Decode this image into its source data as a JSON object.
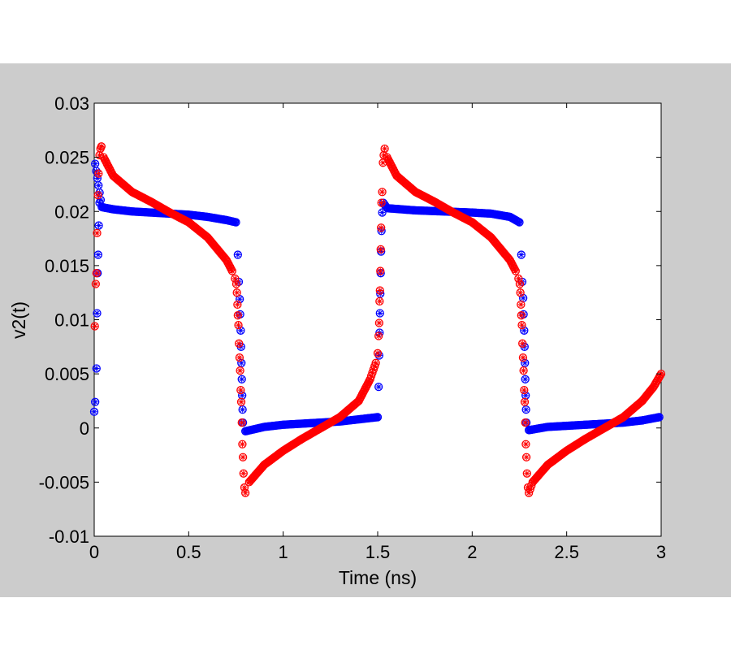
{
  "chart_data": {
    "type": "scatter",
    "title": "",
    "xlabel": "Time (ns)",
    "ylabel": "v2(t)",
    "xlim": [
      0,
      3
    ],
    "ylim": [
      -0.01,
      0.03
    ],
    "xticks": [
      "0",
      "0.5",
      "1",
      "1.5",
      "2",
      "2.5",
      "3"
    ],
    "yticks": [
      "-0.01",
      "-0.005",
      "0",
      "0.005",
      "0.01",
      "0.015",
      "0.02",
      "0.025",
      "0.03"
    ],
    "grid": false,
    "legend": "none",
    "marker": "asterisk-circle",
    "series": [
      {
        "color": "#0000ff",
        "points": [
          [
            0.0,
            0.0015
          ],
          [
            0.005,
            0.0024
          ],
          [
            0.012,
            0.0055
          ],
          [
            0.015,
            0.0106
          ],
          [
            0.018,
            0.0143
          ],
          [
            0.021,
            0.016
          ],
          [
            0.024,
            0.0187
          ],
          [
            0.028,
            0.0208
          ],
          [
            0.005,
            0.0244
          ],
          [
            0.04,
            0.0204
          ],
          [
            0.1,
            0.0202
          ],
          [
            0.2,
            0.02
          ],
          [
            0.3,
            0.0199
          ],
          [
            0.4,
            0.0198
          ],
          [
            0.5,
            0.0197
          ],
          [
            0.6,
            0.0195
          ],
          [
            0.7,
            0.0192
          ],
          [
            0.75,
            0.019
          ],
          [
            0.76,
            0.016
          ],
          [
            0.765,
            0.0135
          ],
          [
            0.77,
            0.0119
          ],
          [
            0.772,
            0.0105
          ],
          [
            0.775,
            0.009
          ],
          [
            0.777,
            0.0075
          ],
          [
            0.779,
            0.006
          ],
          [
            0.781,
            0.0045
          ],
          [
            0.783,
            0.003
          ],
          [
            0.785,
            0.0017
          ],
          [
            0.787,
            0.0005
          ],
          [
            0.8,
            -0.0003
          ],
          [
            0.9,
            0.0001
          ],
          [
            1.0,
            0.0003
          ],
          [
            1.1,
            0.0004
          ],
          [
            1.2,
            0.0005
          ],
          [
            1.3,
            0.0006
          ],
          [
            1.4,
            0.0008
          ],
          [
            1.5,
            0.001
          ],
          [
            1.505,
            0.0038
          ],
          [
            1.508,
            0.0067
          ],
          [
            1.51,
            0.0088
          ],
          [
            1.512,
            0.0106
          ],
          [
            1.514,
            0.0124
          ],
          [
            1.516,
            0.0143
          ],
          [
            1.518,
            0.0163
          ],
          [
            1.52,
            0.0182
          ],
          [
            1.524,
            0.0199
          ],
          [
            1.53,
            0.0208
          ],
          [
            1.55,
            0.0203
          ],
          [
            1.7,
            0.0201
          ],
          [
            1.85,
            0.02
          ],
          [
            2.0,
            0.0199
          ],
          [
            2.1,
            0.0198
          ],
          [
            2.2,
            0.0195
          ],
          [
            2.25,
            0.019
          ],
          [
            2.26,
            0.016
          ],
          [
            2.265,
            0.0135
          ],
          [
            2.27,
            0.012
          ],
          [
            2.272,
            0.0105
          ],
          [
            2.275,
            0.009
          ],
          [
            2.277,
            0.0075
          ],
          [
            2.279,
            0.006
          ],
          [
            2.281,
            0.0045
          ],
          [
            2.283,
            0.003
          ],
          [
            2.285,
            0.0017
          ],
          [
            2.287,
            0.0005
          ],
          [
            2.3,
            -0.0002
          ],
          [
            2.4,
            0.0001
          ],
          [
            2.5,
            0.0002
          ],
          [
            2.6,
            0.0003
          ],
          [
            2.7,
            0.0004
          ],
          [
            2.8,
            0.0005
          ],
          [
            2.9,
            0.0007
          ],
          [
            2.99,
            0.001
          ]
        ]
      },
      {
        "color": "#ff0000",
        "points": [
          [
            0.003,
            0.0094
          ],
          [
            0.008,
            0.0133
          ],
          [
            0.012,
            0.0143
          ],
          [
            0.015,
            0.018
          ],
          [
            0.02,
            0.0215
          ],
          [
            0.023,
            0.0235
          ],
          [
            0.028,
            0.0252
          ],
          [
            0.033,
            0.0258
          ],
          [
            0.038,
            0.026
          ],
          [
            0.05,
            0.025
          ],
          [
            0.1,
            0.0233
          ],
          [
            0.2,
            0.0218
          ],
          [
            0.3,
            0.0209
          ],
          [
            0.4,
            0.0199
          ],
          [
            0.5,
            0.019
          ],
          [
            0.6,
            0.0176
          ],
          [
            0.7,
            0.0155
          ],
          [
            0.73,
            0.0145
          ],
          [
            0.745,
            0.0138
          ],
          [
            0.752,
            0.0133
          ],
          [
            0.755,
            0.0125
          ],
          [
            0.758,
            0.0114
          ],
          [
            0.76,
            0.0104
          ],
          [
            0.763,
            0.0095
          ],
          [
            0.766,
            0.0078
          ],
          [
            0.769,
            0.0065
          ],
          [
            0.772,
            0.0053
          ],
          [
            0.775,
            0.0035
          ],
          [
            0.778,
            0.0024
          ],
          [
            0.781,
            0.0005
          ],
          [
            0.784,
            -0.0015
          ],
          [
            0.787,
            -0.0027
          ],
          [
            0.79,
            -0.0042
          ],
          [
            0.795,
            -0.0055
          ],
          [
            0.8,
            -0.006
          ],
          [
            0.82,
            -0.005
          ],
          [
            0.9,
            -0.0034
          ],
          [
            1.0,
            -0.0021
          ],
          [
            1.1,
            -0.001
          ],
          [
            1.2,
            0.0
          ],
          [
            1.3,
            0.001
          ],
          [
            1.4,
            0.0025
          ],
          [
            1.46,
            0.0045
          ],
          [
            1.49,
            0.006
          ],
          [
            1.5,
            0.0069
          ],
          [
            1.505,
            0.0085
          ],
          [
            1.508,
            0.0097
          ],
          [
            1.51,
            0.0117
          ],
          [
            1.512,
            0.0127
          ],
          [
            1.514,
            0.0145
          ],
          [
            1.516,
            0.0165
          ],
          [
            1.518,
            0.0185
          ],
          [
            1.52,
            0.0208
          ],
          [
            1.524,
            0.0218
          ],
          [
            1.528,
            0.0245
          ],
          [
            1.532,
            0.0252
          ],
          [
            1.537,
            0.0258
          ],
          [
            1.55,
            0.025
          ],
          [
            1.6,
            0.0233
          ],
          [
            1.7,
            0.0218
          ],
          [
            1.8,
            0.0209
          ],
          [
            1.9,
            0.0199
          ],
          [
            2.0,
            0.019
          ],
          [
            2.1,
            0.0176
          ],
          [
            2.2,
            0.0155
          ],
          [
            2.23,
            0.0145
          ],
          [
            2.245,
            0.0138
          ],
          [
            2.252,
            0.0133
          ],
          [
            2.255,
            0.0125
          ],
          [
            2.258,
            0.0114
          ],
          [
            2.26,
            0.0104
          ],
          [
            2.263,
            0.0095
          ],
          [
            2.266,
            0.0078
          ],
          [
            2.269,
            0.0065
          ],
          [
            2.272,
            0.0053
          ],
          [
            2.275,
            0.0035
          ],
          [
            2.278,
            0.0024
          ],
          [
            2.281,
            0.0005
          ],
          [
            2.284,
            -0.0015
          ],
          [
            2.287,
            -0.0027
          ],
          [
            2.29,
            -0.0042
          ],
          [
            2.295,
            -0.0055
          ],
          [
            2.3,
            -0.006
          ],
          [
            2.32,
            -0.005
          ],
          [
            2.4,
            -0.0034
          ],
          [
            2.5,
            -0.0021
          ],
          [
            2.6,
            -0.001
          ],
          [
            2.7,
            0.0
          ],
          [
            2.8,
            0.001
          ],
          [
            2.9,
            0.0025
          ],
          [
            2.96,
            0.0038
          ],
          [
            3.0,
            0.005
          ]
        ]
      }
    ]
  }
}
